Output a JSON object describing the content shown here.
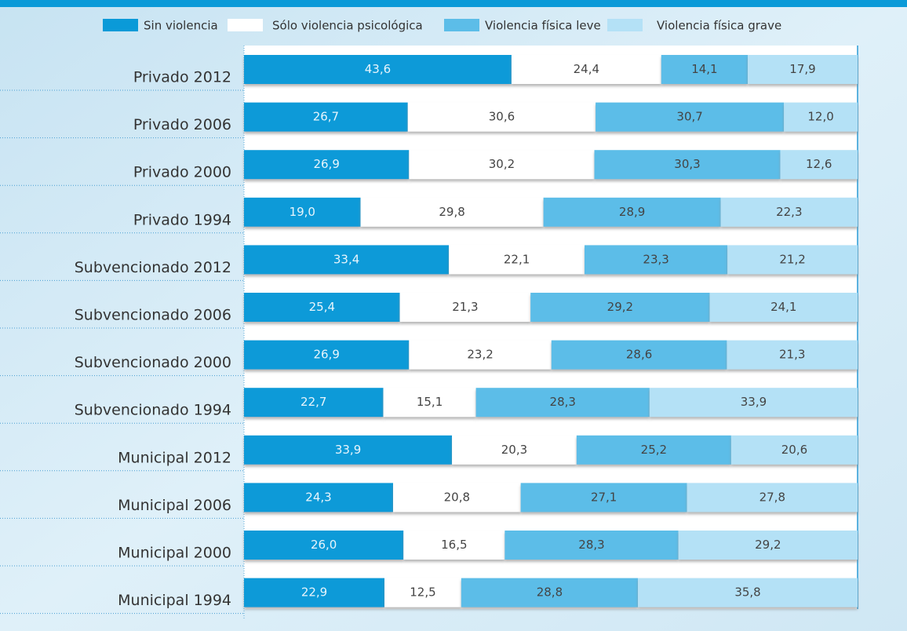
{
  "chart_data": {
    "type": "stacked-bar-horizontal",
    "categories": [
      "Privado 2012",
      "Privado 2006",
      "Privado 2000",
      "Privado 1994",
      "Subvencionado 2012",
      "Subvencionado 2006",
      "Subvencionado 2000",
      "Subvencionado 1994",
      "Municipal 2012",
      "Municipal 2006",
      "Municipal 2000",
      "Municipal 1994"
    ],
    "xlim": [
      0,
      100
    ],
    "series": [
      {
        "name": "Sin violencia",
        "color": "#0a9ad8",
        "values": [
          43.6,
          26.7,
          26.9,
          19.0,
          33.4,
          25.4,
          26.9,
          22.7,
          33.9,
          24.3,
          26.0,
          22.9
        ],
        "value_labels": [
          "43,6",
          "26,7",
          "26,9",
          "19,0",
          "33,4",
          "25,4",
          "26,9",
          "22,7",
          "33,9",
          "24,3",
          "26,0",
          "22,9"
        ]
      },
      {
        "name": "Sólo violencia psicológica",
        "color": "#ffffff",
        "values": [
          24.4,
          30.6,
          30.2,
          29.8,
          22.1,
          21.3,
          23.2,
          15.1,
          20.3,
          20.8,
          16.5,
          12.5
        ],
        "value_labels": [
          "24,4",
          "30,6",
          "30,2",
          "29,8",
          "22,1",
          "21,3",
          "23,2",
          "15,1",
          "20,3",
          "20,8",
          "16,5",
          "12,5"
        ]
      },
      {
        "name": "Violencia física leve",
        "color": "#5cbde8",
        "values": [
          14.1,
          30.7,
          30.3,
          28.9,
          23.3,
          29.2,
          28.6,
          28.3,
          25.2,
          27.1,
          28.3,
          28.8
        ],
        "value_labels": [
          "14,1",
          "30,7",
          "30,3",
          "28,9",
          "23,3",
          "29,2",
          "28,6",
          "28,3",
          "25,2",
          "27,1",
          "28,3",
          "28,8"
        ]
      },
      {
        "name": "Violencia física grave",
        "color": "#b4e1f6",
        "values": [
          17.9,
          12.0,
          12.6,
          22.3,
          21.2,
          24.1,
          21.3,
          33.9,
          20.6,
          27.8,
          29.2,
          35.8
        ],
        "value_labels": [
          "17,9",
          "12,0",
          "12,6",
          "22,3",
          "21,2",
          "24,1",
          "21,3",
          "33,9",
          "20,6",
          "27,8",
          "29,2",
          "35,8"
        ]
      }
    ]
  }
}
